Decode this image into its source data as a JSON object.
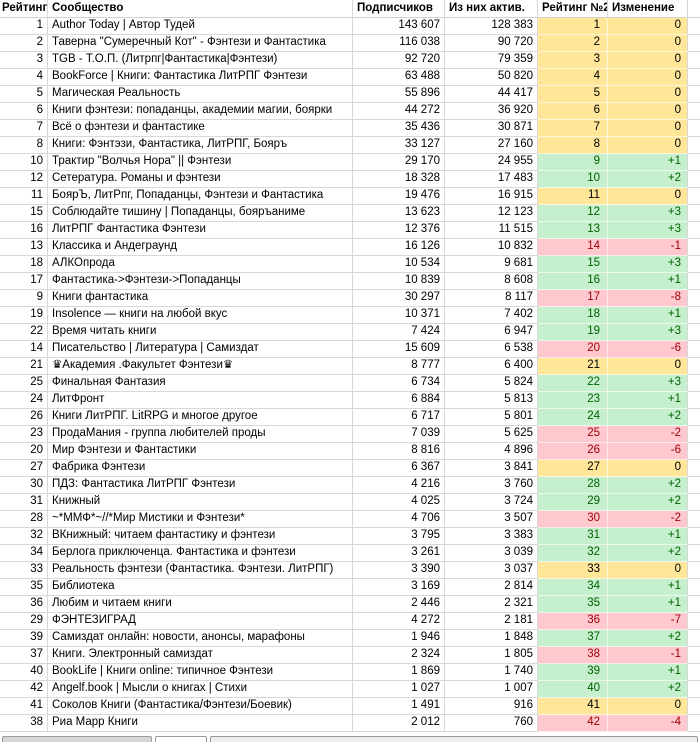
{
  "table": {
    "columns": [
      {
        "label": "Рейтинг"
      },
      {
        "label": "Сообщество"
      },
      {
        "label": "Подписчиков"
      },
      {
        "label": "Из них актив."
      },
      {
        "label": "Рейтинг №2"
      },
      {
        "label": "Изменение"
      }
    ],
    "rows": [
      {
        "rank": "1",
        "name": "Author Today | Автор Тудей",
        "subscribers": "143 607",
        "active": "128 383",
        "rank2": "1",
        "change": "0"
      },
      {
        "rank": "2",
        "name": "Таверна \"Сумеречный Кот\" - Фэнтези и Фантастика",
        "subscribers": "116 038",
        "active": "90 720",
        "rank2": "2",
        "change": "0"
      },
      {
        "rank": "3",
        "name": "TGB - Т.О.П. (Литрпг|Фантастика|Фэнтези)",
        "subscribers": "92 720",
        "active": "79 359",
        "rank2": "3",
        "change": "0"
      },
      {
        "rank": "4",
        "name": "BookForce | Книги: Фантастика ЛитРПГ Фэнтези",
        "subscribers": "63 488",
        "active": "50 820",
        "rank2": "4",
        "change": "0"
      },
      {
        "rank": "5",
        "name": "Магическая Реальность",
        "subscribers": "55 896",
        "active": "44 417",
        "rank2": "5",
        "change": "0"
      },
      {
        "rank": "6",
        "name": "Книги фэнтези: попаданцы, академии магии, боярки",
        "subscribers": "44 272",
        "active": "36 920",
        "rank2": "6",
        "change": "0"
      },
      {
        "rank": "7",
        "name": "Всё о фэнтези и фантастике",
        "subscribers": "35 436",
        "active": "30 871",
        "rank2": "7",
        "change": "0"
      },
      {
        "rank": "8",
        "name": "Книги: Фэнтэзи, Фантастика, ЛитРПГ, Бояръ",
        "subscribers": "33 127",
        "active": "27 160",
        "rank2": "8",
        "change": "0"
      },
      {
        "rank": "10",
        "name": "Трактир \"Волчья Нора\" || Фэнтези",
        "subscribers": "29 170",
        "active": "24 955",
        "rank2": "9",
        "change": "+1"
      },
      {
        "rank": "12",
        "name": "Сетература. Романы и фэнтези",
        "subscribers": "18 328",
        "active": "17 483",
        "rank2": "10",
        "change": "+2"
      },
      {
        "rank": "11",
        "name": "БоярЪ, ЛитРпг, Попаданцы, Фэнтези и Фантастика",
        "subscribers": "19 476",
        "active": "16 915",
        "rank2": "11",
        "change": "0"
      },
      {
        "rank": "15",
        "name": "Соблюдайте тишину | Попаданцы, бояръаниме",
        "subscribers": "13 623",
        "active": "12 123",
        "rank2": "12",
        "change": "+3"
      },
      {
        "rank": "16",
        "name": "ЛитРПГ Фантастика Фэнтези",
        "subscribers": "12 376",
        "active": "11 515",
        "rank2": "13",
        "change": "+3"
      },
      {
        "rank": "13",
        "name": "Классика и Андеграунд",
        "subscribers": "16 126",
        "active": "10 832",
        "rank2": "14",
        "change": "-1"
      },
      {
        "rank": "18",
        "name": "АЛКОпрода",
        "subscribers": "10 534",
        "active": "9 681",
        "rank2": "15",
        "change": "+3"
      },
      {
        "rank": "17",
        "name": "Фантастика->Фэнтези->Попаданцы",
        "subscribers": "10 839",
        "active": "8 608",
        "rank2": "16",
        "change": "+1"
      },
      {
        "rank": "9",
        "name": "Книги фантастика",
        "subscribers": "30 297",
        "active": "8 117",
        "rank2": "17",
        "change": "-8"
      },
      {
        "rank": "19",
        "name": "Insolence — книги на любой вкус",
        "subscribers": "10 371",
        "active": "7 402",
        "rank2": "18",
        "change": "+1"
      },
      {
        "rank": "22",
        "name": "Время читать книги",
        "subscribers": "7 424",
        "active": "6 947",
        "rank2": "19",
        "change": "+3"
      },
      {
        "rank": "14",
        "name": "Писательство | Литература | Самиздат",
        "subscribers": "15 609",
        "active": "6 538",
        "rank2": "20",
        "change": "-6"
      },
      {
        "rank": "21",
        "name": "♛Академия .Факультет Фэнтези♛",
        "subscribers": "8 777",
        "active": "6 400",
        "rank2": "21",
        "change": "0"
      },
      {
        "rank": "25",
        "name": "Финальная Фантазия",
        "subscribers": "6 734",
        "active": "5 824",
        "rank2": "22",
        "change": "+3"
      },
      {
        "rank": "24",
        "name": "ЛитФронт",
        "subscribers": "6 884",
        "active": "5 813",
        "rank2": "23",
        "change": "+1"
      },
      {
        "rank": "26",
        "name": "Книги ЛитРПГ. LitRPG и многое другое",
        "subscribers": "6 717",
        "active": "5 801",
        "rank2": "24",
        "change": "+2"
      },
      {
        "rank": "23",
        "name": "ПродаМания - группа любителей проды",
        "subscribers": "7 039",
        "active": "5 625",
        "rank2": "25",
        "change": "-2"
      },
      {
        "rank": "20",
        "name": "Мир Фэнтези и Фантастики",
        "subscribers": "8 816",
        "active": "4 896",
        "rank2": "26",
        "change": "-6"
      },
      {
        "rank": "27",
        "name": "Фабрика Фэнтези",
        "subscribers": "6 367",
        "active": "3 841",
        "rank2": "27",
        "change": "0"
      },
      {
        "rank": "30",
        "name": "ПДЗ: Фантастика ЛитРПГ Фэнтези",
        "subscribers": "4 216",
        "active": "3 760",
        "rank2": "28",
        "change": "+2"
      },
      {
        "rank": "31",
        "name": "Книжный",
        "subscribers": "4 025",
        "active": "3 724",
        "rank2": "29",
        "change": "+2"
      },
      {
        "rank": "28",
        "name": "~*ММФ*~//*Мир Мистики и Фэнтези*",
        "subscribers": "4 706",
        "active": "3 507",
        "rank2": "30",
        "change": "-2"
      },
      {
        "rank": "32",
        "name": "ВКнижный: читаем фантастику и фэнтези",
        "subscribers": "3 795",
        "active": "3 383",
        "rank2": "31",
        "change": "+1"
      },
      {
        "rank": "34",
        "name": "Берлога приключенца. Фантастика и фэнтези",
        "subscribers": "3 261",
        "active": "3 039",
        "rank2": "32",
        "change": "+2"
      },
      {
        "rank": "33",
        "name": "Реальность фэнтези (Фантастика. Фэнтези. ЛитРПГ)",
        "subscribers": "3 390",
        "active": "3 037",
        "rank2": "33",
        "change": "0"
      },
      {
        "rank": "35",
        "name": "Библиотека",
        "subscribers": "3 169",
        "active": "2 814",
        "rank2": "34",
        "change": "+1"
      },
      {
        "rank": "36",
        "name": "Любим и читаем книги",
        "subscribers": "2 446",
        "active": "2 321",
        "rank2": "35",
        "change": "+1"
      },
      {
        "rank": "29",
        "name": "ФЭНТЕЗИГРАД",
        "subscribers": "4 272",
        "active": "2 181",
        "rank2": "36",
        "change": "-7"
      },
      {
        "rank": "39",
        "name": "Самиздат онлайн: новости, анонсы, марафоны",
        "subscribers": "1 946",
        "active": "1 848",
        "rank2": "37",
        "change": "+2"
      },
      {
        "rank": "37",
        "name": "Книги. Электронный самиздат",
        "subscribers": "2 324",
        "active": "1 805",
        "rank2": "38",
        "change": "-1"
      },
      {
        "rank": "40",
        "name": "BookLife | Книги online: типичное Фэнтези",
        "subscribers": "1 869",
        "active": "1 740",
        "rank2": "39",
        "change": "+1"
      },
      {
        "rank": "42",
        "name": "Angelf.book | Мысли о книгах | Стихи",
        "subscribers": "1 027",
        "active": "1 007",
        "rank2": "40",
        "change": "+2"
      },
      {
        "rank": "41",
        "name": "Соколов Книги (Фантастика/Фэнтези/Боевик)",
        "subscribers": "1 491",
        "active": "916",
        "rank2": "41",
        "change": "0"
      },
      {
        "rank": "38",
        "name": "Риа Марр Книги",
        "subscribers": "2 012",
        "active": "760",
        "rank2": "42",
        "change": "-4"
      }
    ]
  },
  "colors": {
    "neutral_bg": "#FFE699",
    "neutral_text": "#000000",
    "up_bg": "#C6EFCE",
    "up_text": "#006100",
    "down_bg": "#FFC7CE",
    "down_text": "#9C0006",
    "gridline": "#D8D8D8"
  }
}
